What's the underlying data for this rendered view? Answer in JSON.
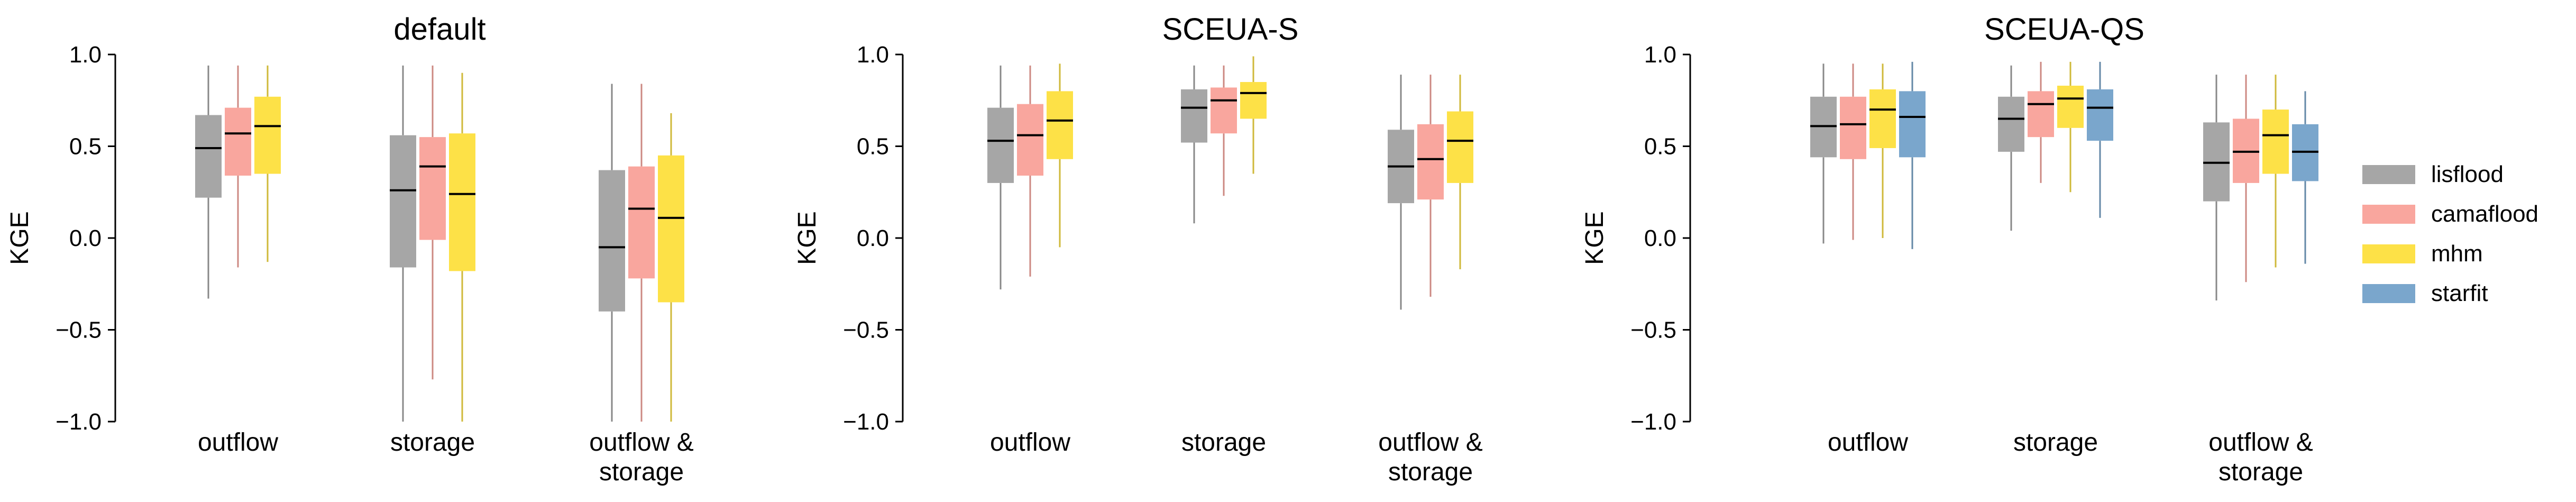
{
  "chart_data": {
    "type": "box",
    "series": [
      {
        "name": "lisflood",
        "color": "#a6a6a6"
      },
      {
        "name": "camaflood",
        "color": "#f9a69e"
      },
      {
        "name": "mhm",
        "color": "#fde147"
      },
      {
        "name": "starfit",
        "color": "#7aa6cc"
      }
    ],
    "categories": [
      "outflow",
      "storage",
      "outflow &\nstorage"
    ],
    "ylabel": "KGE",
    "ylim": [
      -1.0,
      1.0
    ],
    "yticks": [
      {
        "v": 1.0,
        "t": "1.0"
      },
      {
        "v": 0.5,
        "t": "0.5"
      },
      {
        "v": 0.0,
        "t": "0.0"
      },
      {
        "v": -0.5,
        "t": "−0.5"
      },
      {
        "v": -1.0,
        "t": "−1.0"
      }
    ],
    "grid": false,
    "legend_position": "right",
    "panels": [
      {
        "title": "default",
        "groups": [
          {
            "category": "outflow",
            "boxes": [
              {
                "series": "lisflood",
                "whislo": -0.33,
                "q1": 0.22,
                "med": 0.49,
                "q3": 0.67,
                "whishi": 0.94
              },
              {
                "series": "camaflood",
                "whislo": -0.16,
                "q1": 0.34,
                "med": 0.57,
                "q3": 0.71,
                "whishi": 0.94
              },
              {
                "series": "mhm",
                "whislo": -0.13,
                "q1": 0.35,
                "med": 0.61,
                "q3": 0.77,
                "whishi": 0.94
              }
            ]
          },
          {
            "category": "storage",
            "boxes": [
              {
                "series": "lisflood",
                "whislo": -1.0,
                "q1": -0.16,
                "med": 0.26,
                "q3": 0.56,
                "whishi": 0.94
              },
              {
                "series": "camaflood",
                "whislo": -0.77,
                "q1": -0.01,
                "med": 0.39,
                "q3": 0.55,
                "whishi": 0.94
              },
              {
                "series": "mhm",
                "whislo": -1.0,
                "q1": -0.18,
                "med": 0.24,
                "q3": 0.57,
                "whishi": 0.9
              }
            ]
          },
          {
            "category": "outflow &\nstorage",
            "boxes": [
              {
                "series": "lisflood",
                "whislo": -1.0,
                "q1": -0.4,
                "med": -0.05,
                "q3": 0.37,
                "whishi": 0.84
              },
              {
                "series": "camaflood",
                "whislo": -1.0,
                "q1": -0.22,
                "med": 0.16,
                "q3": 0.39,
                "whishi": 0.84
              },
              {
                "series": "mhm",
                "whislo": -1.0,
                "q1": -0.35,
                "med": 0.11,
                "q3": 0.45,
                "whishi": 0.68
              }
            ]
          }
        ]
      },
      {
        "title": "SCEUA-S",
        "groups": [
          {
            "category": "outflow",
            "boxes": [
              {
                "series": "lisflood",
                "whislo": -0.28,
                "q1": 0.3,
                "med": 0.53,
                "q3": 0.71,
                "whishi": 0.94
              },
              {
                "series": "camaflood",
                "whislo": -0.21,
                "q1": 0.34,
                "med": 0.56,
                "q3": 0.73,
                "whishi": 0.94
              },
              {
                "series": "mhm",
                "whislo": -0.05,
                "q1": 0.43,
                "med": 0.64,
                "q3": 0.8,
                "whishi": 0.95
              }
            ]
          },
          {
            "category": "storage",
            "boxes": [
              {
                "series": "lisflood",
                "whislo": 0.08,
                "q1": 0.52,
                "med": 0.71,
                "q3": 0.81,
                "whishi": 0.94
              },
              {
                "series": "camaflood",
                "whislo": 0.23,
                "q1": 0.57,
                "med": 0.75,
                "q3": 0.82,
                "whishi": 0.94
              },
              {
                "series": "mhm",
                "whislo": 0.35,
                "q1": 0.65,
                "med": 0.79,
                "q3": 0.85,
                "whishi": 0.99
              }
            ]
          },
          {
            "category": "outflow &\nstorage",
            "boxes": [
              {
                "series": "lisflood",
                "whislo": -0.39,
                "q1": 0.19,
                "med": 0.39,
                "q3": 0.59,
                "whishi": 0.89
              },
              {
                "series": "camaflood",
                "whislo": -0.32,
                "q1": 0.21,
                "med": 0.43,
                "q3": 0.62,
                "whishi": 0.89
              },
              {
                "series": "mhm",
                "whislo": -0.17,
                "q1": 0.3,
                "med": 0.53,
                "q3": 0.69,
                "whishi": 0.89
              }
            ]
          }
        ]
      },
      {
        "title": "SCEUA-QS",
        "groups": [
          {
            "category": "outflow",
            "boxes": [
              {
                "series": "lisflood",
                "whislo": -0.03,
                "q1": 0.44,
                "med": 0.61,
                "q3": 0.77,
                "whishi": 0.95
              },
              {
                "series": "camaflood",
                "whislo": -0.01,
                "q1": 0.43,
                "med": 0.62,
                "q3": 0.77,
                "whishi": 0.95
              },
              {
                "series": "mhm",
                "whislo": 0.0,
                "q1": 0.49,
                "med": 0.7,
                "q3": 0.81,
                "whishi": 0.95
              },
              {
                "series": "starfit",
                "whislo": -0.06,
                "q1": 0.44,
                "med": 0.66,
                "q3": 0.8,
                "whishi": 0.96
              }
            ]
          },
          {
            "category": "storage",
            "boxes": [
              {
                "series": "lisflood",
                "whislo": 0.04,
                "q1": 0.47,
                "med": 0.65,
                "q3": 0.77,
                "whishi": 0.94
              },
              {
                "series": "camaflood",
                "whislo": 0.3,
                "q1": 0.55,
                "med": 0.73,
                "q3": 0.8,
                "whishi": 0.96
              },
              {
                "series": "mhm",
                "whislo": 0.25,
                "q1": 0.6,
                "med": 0.76,
                "q3": 0.83,
                "whishi": 0.96
              },
              {
                "series": "starfit",
                "whislo": 0.11,
                "q1": 0.53,
                "med": 0.71,
                "q3": 0.81,
                "whishi": 0.96
              }
            ]
          },
          {
            "category": "outflow &\nstorage",
            "boxes": [
              {
                "series": "lisflood",
                "whislo": -0.34,
                "q1": 0.2,
                "med": 0.41,
                "q3": 0.63,
                "whishi": 0.89
              },
              {
                "series": "camaflood",
                "whislo": -0.24,
                "q1": 0.3,
                "med": 0.47,
                "q3": 0.65,
                "whishi": 0.89
              },
              {
                "series": "mhm",
                "whislo": -0.16,
                "q1": 0.35,
                "med": 0.56,
                "q3": 0.7,
                "whishi": 0.89
              },
              {
                "series": "starfit",
                "whislo": -0.14,
                "q1": 0.31,
                "med": 0.47,
                "q3": 0.62,
                "whishi": 0.8
              }
            ]
          }
        ]
      }
    ]
  }
}
